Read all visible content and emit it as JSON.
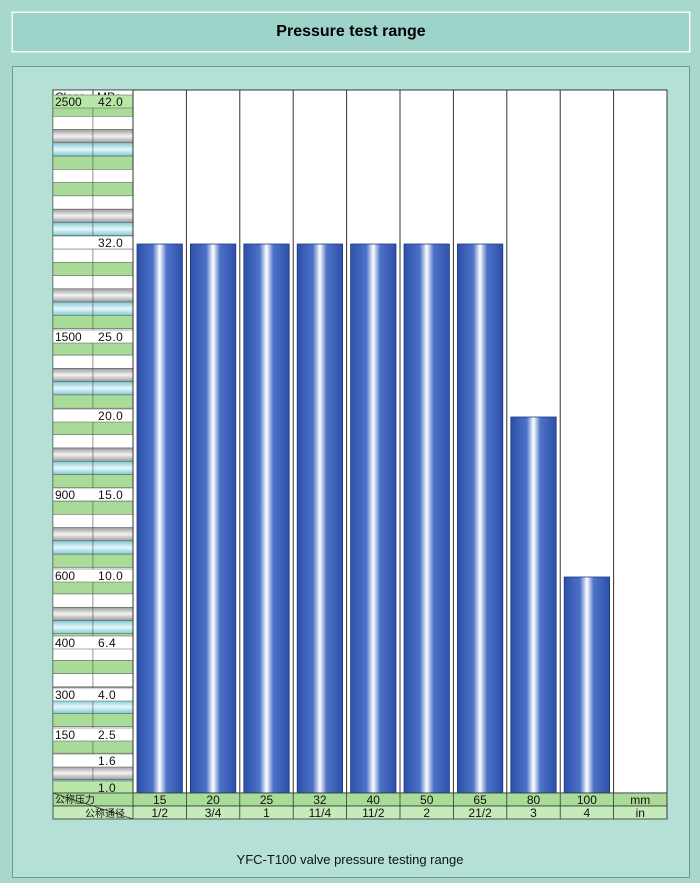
{
  "title": "Pressure test range",
  "caption": "YFC-T100 valve pressure testing range",
  "chart_data": {
    "type": "bar",
    "ylim": [
      0,
      42.0
    ],
    "header": {
      "class_label": "Class",
      "mpa_label": "MPa"
    },
    "y_rows": [
      {
        "class": "2500",
        "mpa": "42.0",
        "value": 42.0
      },
      {
        "class": "",
        "mpa": "32.0",
        "value": 32.0
      },
      {
        "class": "1500",
        "mpa": "25.0",
        "value": 25.0
      },
      {
        "class": "",
        "mpa": "20.0",
        "value": 20.0
      },
      {
        "class": "900",
        "mpa": "15.0",
        "value": 15.0
      },
      {
        "class": "600",
        "mpa": "10.0",
        "value": 10.0
      },
      {
        "class": "400",
        "mpa": "6.4",
        "value": 6.4
      },
      {
        "class": "300",
        "mpa": "4.0",
        "value": 4.0
      },
      {
        "class": "150",
        "mpa": "2.5",
        "value": 2.5
      },
      {
        "class": "",
        "mpa": "1.6",
        "value": 1.6
      },
      {
        "class": "",
        "mpa": "1.0",
        "value": 1.0
      }
    ],
    "x_header": {
      "pressure_label": "公称压力",
      "diameter_label": "公称通径"
    },
    "categories_mm": [
      "15",
      "20",
      "25",
      "32",
      "40",
      "50",
      "65",
      "80",
      "100"
    ],
    "categories_in": [
      "1/2",
      "3/4",
      "1",
      "11/4",
      "11/2",
      "2",
      "21/2",
      "3",
      "4"
    ],
    "unit_mm": "mm",
    "unit_in": "in",
    "values": [
      32.0,
      32.0,
      32.0,
      32.0,
      32.0,
      32.0,
      32.0,
      20.0,
      10.0
    ]
  },
  "colors": {
    "bar_dark": "#2d4fa8",
    "bar_mid": "#4d73c8",
    "bar_light": "#ffffff",
    "row_green": "#a8dc98",
    "row_blue": "#a8dde8",
    "row_gray": "#c8c8c8",
    "row_white": "#ffffff"
  }
}
